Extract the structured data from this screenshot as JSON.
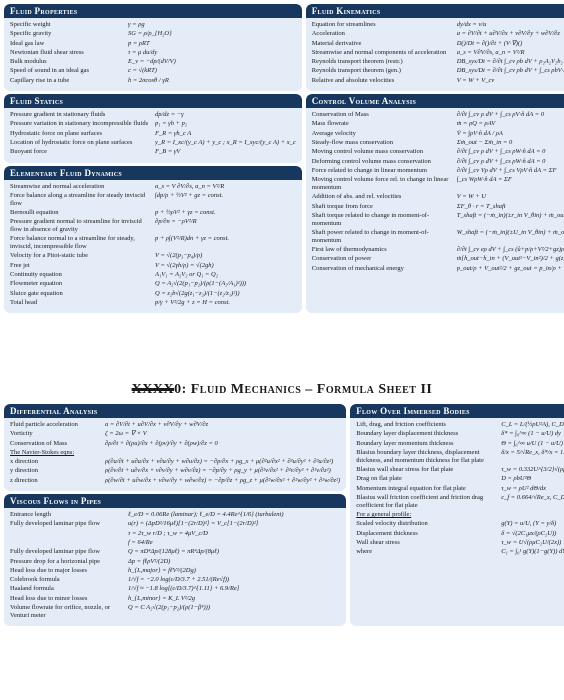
{
  "colors": {
    "panel_bg": "#e3ecf7",
    "title_bg": "#17375e",
    "title_fg": "#ffffff",
    "text": "#1a1a1a"
  },
  "sheet1": {
    "fluidProperties": {
      "title": "Fluid Properties",
      "items": [
        {
          "label": "Specific weight",
          "formula": "γ = ρg"
        },
        {
          "label": "Specific gravity",
          "formula": "SG = ρ/ρ_{H₂O}"
        },
        {
          "label": "Ideal gas law",
          "formula": "p = ρRT"
        },
        {
          "label": "Newtonian fluid shear stress",
          "formula": "τ = μ du/dy"
        },
        {
          "label": "Bulk modulus",
          "formula": "E_v = −dp/(dV/V)"
        },
        {
          "label": "Speed of sound in an ideal gas",
          "formula": "c = √(kRT)"
        },
        {
          "label": "Capillary rise in a tube",
          "formula": "h = 2σcosθ / γR"
        }
      ]
    },
    "fluidKinematics": {
      "title": "Fluid Kinematics",
      "items": [
        {
          "label": "Equation for streamlines",
          "formula": "dy/dx = v/u"
        },
        {
          "label": "Acceleration",
          "formula": "a = ∂V/∂t + u∂V/∂x + v∂V/∂y + w∂V/∂z"
        },
        {
          "label": "Material derivative",
          "formula": "D()/Dt = ∂()/∂t + (V·∇)()"
        },
        {
          "label": "Streamwise and normal components of acceleration",
          "formula": "a_s = V∂V/∂s,  a_n = V²/R"
        },
        {
          "label": "Reynolds transport theorem (restr.)",
          "formula": "DB_sys/Dt = ∂/∂t ∫_cv ρb dV + ρ₂A₂V₂b₂ − ρ₁A₁V₁b₁"
        },
        {
          "label": "Reynolds transport theorem (gen.)",
          "formula": "DB_sys/Dt = ∂/∂t ∫_cv ρb dV + ∫_cs ρbV·n̂ dA"
        },
        {
          "label": "Relative and absolute velocities",
          "formula": "V = W + V_cv"
        }
      ]
    },
    "fluidStatics": {
      "title": "Fluid Statics",
      "items": [
        {
          "label": "Pressure gradient in stationary fluids",
          "formula": "dp/dz = −γ"
        },
        {
          "label": "Pressure variation in stationary incompressible fluids",
          "formula": "p₁ = γh + p₂"
        },
        {
          "label": "Hydrostatic force on plane surfaces",
          "formula": "F_R = γh_c A"
        },
        {
          "label": "Location of hydrostatic force on plane surfaces",
          "formula": "y_R = I_xc/(y_c A) + y_c ;  x_R = I_xyc/(y_c A) + x_c"
        },
        {
          "label": "Buoyant force",
          "formula": "F_B = γV"
        }
      ]
    },
    "controlVolume": {
      "title": "Control Volume Analysis",
      "items": [
        {
          "label": "Conservation of Mass",
          "formula": "∂/∂t ∫_cv ρ dV + ∫_cs ρV·n̂ dA = 0"
        },
        {
          "label": "Mass flowrate",
          "formula": "ṁ = ρQ = ρAV"
        },
        {
          "label": "Average velocity",
          "formula": "V̄ = ∫ρV·n̂ dA / ρA"
        },
        {
          "label": "Steady-flow mass conservation",
          "formula": "Σṁ_out − Σṁ_in = 0"
        },
        {
          "label": "Moving control volume mass conservation",
          "formula": "∂/∂t ∫_cv ρ dV + ∫_cs ρW·n̂ dA = 0"
        },
        {
          "label": "Deforming control volume mass conservation",
          "formula": "∂/∂t ∫_cv ρ dV + ∫_cs ρW·n̂ dA = 0"
        },
        {
          "label": "Force related to change in linear momentum",
          "formula": "∂/∂t ∫_cv Vρ dV + ∫_cs VρV·n̂ dA = ΣF"
        },
        {
          "label": "Moving control volume force rel. to change in linear momentum",
          "formula": "∫_cs WρW·n̂ dA = ΣF"
        },
        {
          "label": "Addition of abs. and rel. velocities",
          "formula": "V = W + U"
        },
        {
          "label": "Shaft torque from force",
          "formula": "ΣF_θ · r = T_shaft"
        },
        {
          "label": "Shaft torque related to change in moment-of-momentum",
          "formula": "T_shaft = (−ṁ_in)(±r_in V_θin) + ṁ_out(±r_out V_θout)"
        },
        {
          "label": "Shaft power related to change in moment-of-momentum",
          "formula": "Ẇ_shaft = (−ṁ_in)(±U_in V_θin) + ṁ_out(±U_out V_θout)"
        },
        {
          "label": "First law of thermodynamics",
          "formula": "∂/∂t ∫_cv eρ dV + ∫_cs (ů+p/ρ+V²/2+gz)ρV·n̂ dA = Q̇_net + Ẇ_shaft"
        },
        {
          "label": "Conservation of power",
          "formula": "ṁ[ĥ_out−ĥ_in + (V_out²−V_in²)/2 + g(z_out−z_in)] = Q̇_net + Ẇ_shaft"
        },
        {
          "label": "Conservation of mechanical energy",
          "formula": "p_out/ρ + V_out²/2 + gz_out = p_in/ρ + V_in²/2 + gz_in + w_shaft − loss"
        }
      ]
    },
    "elementary": {
      "title": "Elementary Fluid Dynamics",
      "items": [
        {
          "label": "Streamwise and normal acceleration",
          "formula": "a_s = V ∂V/∂s,  a_n = V²/R"
        },
        {
          "label": "Force balance along a streamline for steady inviscid flow",
          "formula": "∫dp/ρ + ½V² + gz = const."
        },
        {
          "label": "Bernoulli equation",
          "formula": "p + ½ρV² + γz = const."
        },
        {
          "label": "Pressure gradient normal to streamline for inviscid flow in absence of gravity",
          "formula": "∂p/∂n = −ρV²/R"
        },
        {
          "label": "Force balance normal to a streamline for steady, inviscid, incompressible flow",
          "formula": "p + ρ∫(V²/R)dn + γz = const."
        },
        {
          "label": "Velocity for a Pitot-static tube",
          "formula": "V = √(2(p₃−p₄)/ρ)"
        },
        {
          "label": "Free jet",
          "formula": "V = √(2γh/ρ) = √(2gh)"
        },
        {
          "label": "Continuity equation",
          "formula": "A₁V₁ = A₂V₂  or  Q₁ = Q₂"
        },
        {
          "label": "Flowmeter equation",
          "formula": "Q = A₂√(2(p₁−p₂)/(ρ(1−(A₂/A₁)²)))"
        },
        {
          "label": "Sluice gate equation",
          "formula": "Q = z₂b√(2g(z₁−z₂)/(1−(z₂/z₁)²))"
        },
        {
          "label": "Total head",
          "formula": "p/γ + V²/2g + z = H = const."
        }
      ]
    }
  },
  "sheet2": {
    "titlePrefix": "XXXX",
    "titleNum": "0:",
    "titleMain": " Fluid Mechanics – Formula Sheet II",
    "differential": {
      "title": "Differential Analysis",
      "items": [
        {
          "label": "Fluid particle acceleration",
          "formula": "a = ∂V/∂t + u∂V/∂x + v∂V/∂y + w∂V/∂z"
        },
        {
          "label": "Vorticity",
          "formula": "ζ = 2ω = ∇ × V"
        },
        {
          "label": "Conservation of Mass",
          "formula": "∂ρ/∂t + ∂(ρu)/∂x + ∂(ρv)/∂y + ∂(ρw)/∂z = 0"
        },
        {
          "label": "The Navier-Stokes eqns:",
          "formula": ""
        },
        {
          "label": "x direction",
          "formula": "ρ(∂u/∂t + u∂u/∂x + v∂u/∂y + w∂u/∂z) = −∂p/∂x + ρg_x + μ(∂²u/∂x² + ∂²u/∂y² + ∂²u/∂z²)"
        },
        {
          "label": "y direction",
          "formula": "ρ(∂v/∂t + u∂v/∂x + v∂v/∂y + w∂v/∂z) = −∂p/∂y + ρg_y + μ(∂²v/∂x² + ∂²v/∂y² + ∂²v/∂z²)"
        },
        {
          "label": "z direction",
          "formula": "ρ(∂w/∂t + u∂w/∂x + v∂w/∂y + w∂w/∂z) = −∂p/∂z + ρg_z + μ(∂²w/∂x² + ∂²w/∂y² + ∂²w/∂z²)"
        }
      ]
    },
    "flowImmersed": {
      "title": "Flow Over Immersed Bodies",
      "items": [
        {
          "label": "Lift, drag, and friction coefficients",
          "formula": "C_L = L/(½ρU²A),  C_D = D/(½ρU²A)"
        },
        {
          "label": "Boundary layer displacement thickness",
          "formula": "δ* = ∫₀^∞ (1 − u/U) dy"
        },
        {
          "label": "Boundary layer momentum thickness",
          "formula": "Θ = ∫₀^∞ u/U (1 − u/U) dy"
        },
        {
          "label": "Blasius boundary layer thickness, displacement thickness, and momentum thickness for flat plate",
          "formula": "δ/x = 5/√Re_x,  δ*/x = 1.721/√Re_x,  Θ/x = 0.664/√Re_x"
        },
        {
          "label": "Blasius wall shear stress for flat plate",
          "formula": "τ_w = 0.332U^{3/2}√(ρμ/x)"
        },
        {
          "label": "Drag on flat plate",
          "formula": "D = ρbU²Θ"
        },
        {
          "label": "Momentum integral equation for flat plate",
          "formula": "τ_w = ρU² dΘ/dx"
        },
        {
          "label": "Blasius wall friction coefficient and friction drag coefficient for flat plate",
          "formula": "c_f = 0.664/√Re_x,  C_Df = 1.328/√Re_ℓ"
        },
        {
          "label": "For a general profile:",
          "formula": ""
        },
        {
          "label": "Scaled velocity distribution",
          "formula": "g(Y) = u/U,  (Y = y/δ)"
        },
        {
          "label": "Displacement thickness",
          "formula": "δ = √(2C₁μx/(ρC₂U))"
        },
        {
          "label": "Wall shear stress",
          "formula": "τ_w = U√(ρμC₂U/(2x))"
        },
        {
          "label": "where",
          "formula": "C₁ = ∫₀¹ g(Y)(1−g(Y)) dY ;  C₂ = dg/dY|_{Y=0}"
        }
      ]
    },
    "viscous": {
      "title": "Viscous Flows in Pipes",
      "items": [
        {
          "label": "Entrance length",
          "formula": "ℓ_e/D = 0.06Re (laminar);  ℓ_e/D = 4.4Re^{1/6} (turbulent)"
        },
        {
          "label": "Fully developed laminar pipe flow",
          "formula": "u(r) = (ΔpD²/16μℓ)[1−(2r/D)²] = V_c[1−(2r/D)²]"
        },
        {
          "label": "",
          "formula": "τ = 2τ_w r/D ;  τ_w = 4μV_c/D"
        },
        {
          "label": "",
          "formula": "f = 64/Re"
        },
        {
          "label": "Fully developed laminar pipe flow",
          "formula": "Q = πD⁴Δp/(128μℓ) = πR⁴Δp/(8μℓ)"
        },
        {
          "label": "Pressure drop for a horizontal pipe",
          "formula": "Δp = fℓρV²/(2D)"
        },
        {
          "label": "Head loss due to major losses",
          "formula": "h_{L,major} = fℓV²/(2Dg)"
        },
        {
          "label": "Colebrook formula",
          "formula": "1/√f = −2.0 log(ε/D/3.7 + 2.51/(Re√f))"
        },
        {
          "label": "Haaland formula",
          "formula": "1/√f ≈ −1.8 log[(ε/D/3.7)^{1.11} + 6.9/Re]"
        },
        {
          "label": "Head loss due to minor losses",
          "formula": "h_{L,minor} = K_L V²/2g"
        },
        {
          "label": "Volume flowrate for orifice, nozzle, or Venturi meter",
          "formula": "Q = C A₂√(2(p₁−p₂)/(ρ(1−β⁴)))"
        }
      ]
    }
  }
}
